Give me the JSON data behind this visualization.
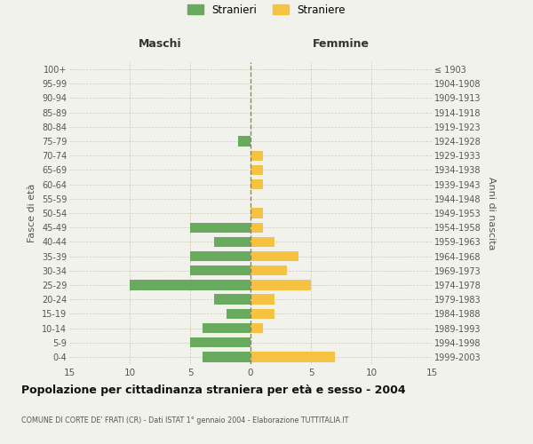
{
  "age_groups": [
    "100+",
    "95-99",
    "90-94",
    "85-89",
    "80-84",
    "75-79",
    "70-74",
    "65-69",
    "60-64",
    "55-59",
    "50-54",
    "45-49",
    "40-44",
    "35-39",
    "30-34",
    "25-29",
    "20-24",
    "15-19",
    "10-14",
    "5-9",
    "0-4"
  ],
  "birth_years": [
    "≤ 1903",
    "1904-1908",
    "1909-1913",
    "1914-1918",
    "1919-1923",
    "1924-1928",
    "1929-1933",
    "1934-1938",
    "1939-1943",
    "1944-1948",
    "1949-1953",
    "1954-1958",
    "1959-1963",
    "1964-1968",
    "1969-1973",
    "1974-1978",
    "1979-1983",
    "1984-1988",
    "1989-1993",
    "1994-1998",
    "1999-2003"
  ],
  "maschi": [
    0,
    0,
    0,
    0,
    0,
    1,
    0,
    0,
    0,
    0,
    0,
    5,
    3,
    5,
    5,
    10,
    3,
    2,
    4,
    5,
    4
  ],
  "femmine": [
    0,
    0,
    0,
    0,
    0,
    0,
    1,
    1,
    1,
    0,
    1,
    1,
    2,
    4,
    3,
    5,
    2,
    2,
    1,
    0,
    7
  ],
  "maschi_color": "#6aaa5e",
  "femmine_color": "#f5c242",
  "background_color": "#f2f2ec",
  "grid_color": "#ccccbb",
  "center_line_color": "#888866",
  "title": "Popolazione per cittadinanza straniera per età e sesso - 2004",
  "subtitle": "COMUNE DI CORTE DE' FRATI (CR) - Dati ISTAT 1° gennaio 2004 - Elaborazione TUTTITALIA.IT",
  "xlabel_left": "Maschi",
  "xlabel_right": "Femmine",
  "ylabel_left": "Fasce di età",
  "ylabel_right": "Anni di nascita",
  "legend_maschi": "Stranieri",
  "legend_femmine": "Straniere",
  "xlim": 15
}
